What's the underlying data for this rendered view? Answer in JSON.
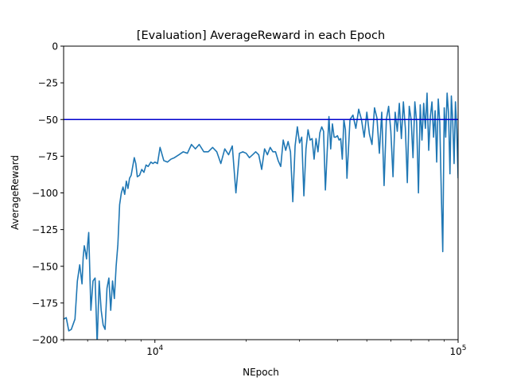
{
  "chart_data": {
    "type": "line",
    "title": "[Evaluation] AverageReward in each Epoch",
    "xlabel": "NEpoch",
    "ylabel": "AverageReward",
    "xscale": "log",
    "xlim": [
      5000,
      100000
    ],
    "ylim": [
      -200,
      0
    ],
    "grid": false,
    "x_ticks": [
      {
        "value": 10000,
        "base": "10",
        "exp": "4"
      },
      {
        "value": 100000,
        "base": "10",
        "exp": "5"
      }
    ],
    "y_ticks": [
      {
        "value": 0,
        "label": "0"
      },
      {
        "value": -25,
        "label": "−25"
      },
      {
        "value": -50,
        "label": "−50"
      },
      {
        "value": -75,
        "label": "−75"
      },
      {
        "value": -100,
        "label": "−100"
      },
      {
        "value": -125,
        "label": "−125"
      },
      {
        "value": -150,
        "label": "−150"
      },
      {
        "value": -175,
        "label": "−175"
      },
      {
        "value": -200,
        "label": "−200"
      }
    ],
    "series": [
      {
        "color": "#1f77b4",
        "x": [
          5000,
          5100,
          5200,
          5300,
          5450,
          5550,
          5650,
          5750,
          5800,
          5850,
          5900,
          5950,
          6000,
          6050,
          6150,
          6250,
          6350,
          6450,
          6550,
          6650,
          6750,
          6850,
          6950,
          7050,
          7150,
          7250,
          7350,
          7450,
          7550,
          7650,
          7750,
          7850,
          7950,
          8050,
          8150,
          8250,
          8350,
          8450,
          8550,
          8650,
          8750,
          8900,
          9050,
          9200,
          9350,
          9500,
          9700,
          9850,
          10000,
          10200,
          10400,
          10700,
          11000,
          11300,
          11600,
          12000,
          12400,
          12800,
          13200,
          13600,
          14000,
          14500,
          15000,
          15500,
          16000,
          16500,
          17000,
          17500,
          18000,
          18500,
          19000,
          19500,
          20000,
          20500,
          21000,
          21500,
          22000,
          22500,
          23000,
          23500,
          24000,
          24500,
          25000,
          25500,
          26000,
          26500,
          27000,
          27500,
          28000,
          28500,
          29000,
          29500,
          30000,
          30500,
          31000,
          31500,
          32000,
          32500,
          33000,
          33500,
          34000,
          34500,
          35000,
          35500,
          36000,
          36500,
          37000,
          37500,
          38000,
          38500,
          39000,
          39500,
          40000,
          40500,
          41000,
          41500,
          42000,
          42500,
          43000,
          44000,
          45000,
          46000,
          47000,
          48000,
          49000,
          50000,
          51000,
          52000,
          53000,
          54000,
          55000,
          56000,
          57000,
          58000,
          59000,
          60000,
          61000,
          62000,
          63000,
          64000,
          65000,
          66000,
          67000,
          68000,
          69000,
          70000,
          71000,
          72000,
          73000,
          74000,
          75000,
          76000,
          77000,
          78000,
          79000,
          80000,
          81000,
          82000,
          83000,
          84000,
          85000,
          86000,
          87000,
          88000,
          89000,
          90000,
          91000,
          92000,
          93000,
          94000,
          95000,
          96000,
          97000,
          98000,
          99000,
          100000
        ],
        "values": [
          -186,
          -185,
          -194,
          -193,
          -186,
          -160,
          -149,
          -162,
          -144,
          -136,
          -140,
          -145,
          -135,
          -127,
          -180,
          -160,
          -158,
          -203,
          -160,
          -180,
          -190,
          -193,
          -165,
          -158,
          -180,
          -160,
          -172,
          -150,
          -135,
          -108,
          -100,
          -96,
          -101,
          -92,
          -97,
          -90,
          -88,
          -82,
          -76,
          -80,
          -89,
          -88,
          -84,
          -86,
          -81,
          -82,
          -79,
          -80,
          -79,
          -80,
          -69,
          -78,
          -79,
          -77,
          -76,
          -74,
          -72,
          -73,
          -67,
          -70,
          -67,
          -72,
          -72,
          -69,
          -72,
          -80,
          -70,
          -74,
          -68,
          -100,
          -73,
          -72,
          -73,
          -76,
          -74,
          -72,
          -74,
          -84,
          -70,
          -74,
          -69,
          -72,
          -72,
          -78,
          -82,
          -64,
          -71,
          -65,
          -72,
          -106,
          -68,
          -55,
          -66,
          -62,
          -102,
          -70,
          -57,
          -64,
          -63,
          -77,
          -63,
          -72,
          -59,
          -55,
          -58,
          -98,
          -72,
          -48,
          -70,
          -53,
          -62,
          -62,
          -61,
          -64,
          -63,
          -77,
          -50,
          -57,
          -90,
          -50,
          -47,
          -56,
          -43,
          -50,
          -62,
          -45,
          -60,
          -67,
          -42,
          -49,
          -73,
          -45,
          -95,
          -50,
          -41,
          -58,
          -89,
          -45,
          -58,
          -39,
          -63,
          -38,
          -56,
          -93,
          -41,
          -50,
          -76,
          -38,
          -52,
          -100,
          -40,
          -64,
          -39,
          -56,
          -32,
          -71,
          -48,
          -38,
          -62,
          -44,
          -79,
          -36,
          -52,
          -99,
          -140,
          -42,
          -62,
          -32,
          -46,
          -87,
          -34,
          -51,
          -80,
          -38,
          -57,
          -90
        ]
      }
    ],
    "reference_line": {
      "y": -50,
      "color": "#0000cc"
    }
  }
}
